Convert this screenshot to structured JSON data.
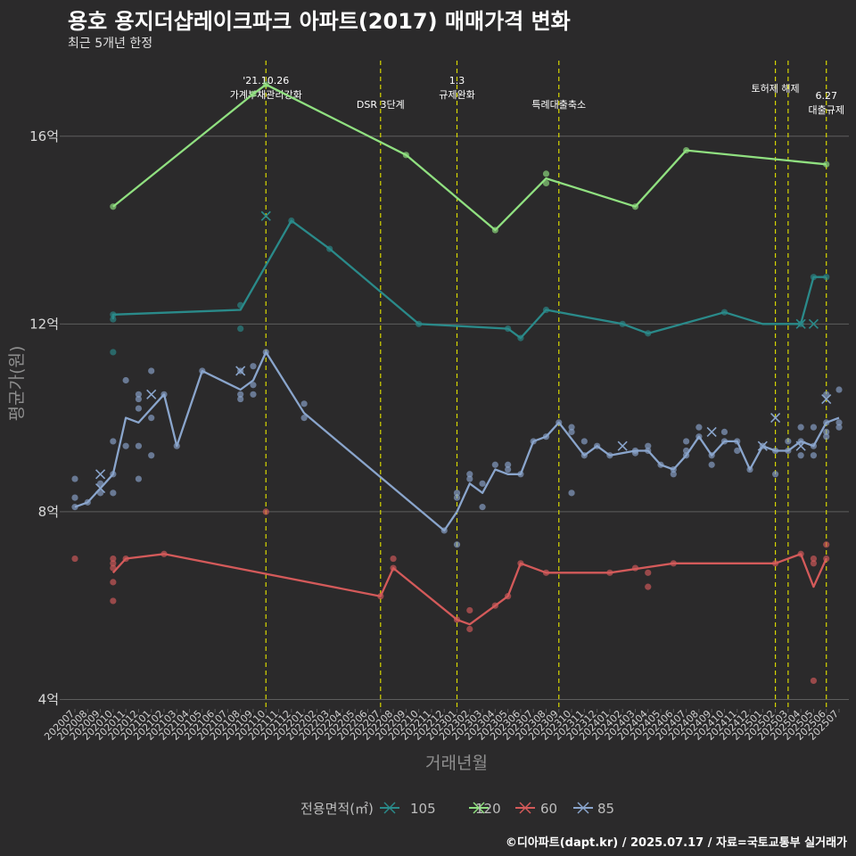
{
  "title": "용호 용지더샵레이크파크 아파트(2017) 매매가격 변화",
  "subtitle": "최근 5개년 한정",
  "caption": "©디아파트(dapt.kr) / 2025.07.17 / 자료=국토교통부 실거래가",
  "chart_data": {
    "type": "line",
    "xlabel": "거래년월",
    "ylabel": "평균가(원)",
    "ylim": [
      3.8,
      17.8
    ],
    "yticks": [
      {
        "v": 4,
        "label": "4억"
      },
      {
        "v": 8,
        "label": "8억"
      },
      {
        "v": 12,
        "label": "12억"
      },
      {
        "v": 16,
        "label": "16억"
      }
    ],
    "categories": [
      "202007",
      "202008",
      "202009",
      "202010",
      "202011",
      "202012",
      "202101",
      "202102",
      "202103",
      "202104",
      "202105",
      "202106",
      "202107",
      "202108",
      "202109",
      "202110",
      "202111",
      "202112",
      "202201",
      "202202",
      "202203",
      "202204",
      "202205",
      "202206",
      "202207",
      "202208",
      "202209",
      "202210",
      "202211",
      "202212",
      "202301",
      "202302",
      "202303",
      "202304",
      "202305",
      "202306",
      "202307",
      "202308",
      "202309",
      "202310",
      "202311",
      "202312",
      "202401",
      "202402",
      "202403",
      "202404",
      "202405",
      "202406",
      "202407",
      "202408",
      "202409",
      "202410",
      "202411",
      "202412",
      "202501",
      "202502",
      "202503",
      "202504",
      "202505",
      "202506",
      "202507"
    ],
    "legend_title": "전용면적(㎡)",
    "legend_position": "bottom",
    "events": [
      {
        "x": 15,
        "label": "'21.10.26\n가계부채관리강화"
      },
      {
        "x": 24,
        "label": "DSR 3단계"
      },
      {
        "x": 30,
        "label": "1.3\n규제완화"
      },
      {
        "x": 38,
        "label": "특례대출축소"
      },
      {
        "x": 55,
        "label": "토허제 해제"
      },
      {
        "x": 56,
        "label": ""
      },
      {
        "x": 59,
        "label": "6.27\n대출규제"
      }
    ],
    "series": [
      {
        "name": "105",
        "color": "#2a8a8a",
        "line": [
          [
            3,
            12.1
          ],
          [
            3,
            12.2
          ],
          [
            13,
            12.3
          ],
          [
            17,
            14.2
          ],
          [
            20,
            13.6
          ],
          [
            27,
            12.0
          ],
          [
            34,
            11.9
          ],
          [
            35,
            11.7
          ],
          [
            37,
            12.3
          ],
          [
            43,
            12.0
          ],
          [
            45,
            11.8
          ],
          [
            51,
            12.25
          ],
          [
            54,
            12.0
          ],
          [
            55,
            12.0
          ],
          [
            57,
            12.0
          ],
          [
            58,
            13.0
          ],
          [
            59,
            13.0
          ]
        ],
        "points": [
          [
            3,
            11.4
          ],
          [
            3,
            12.1
          ],
          [
            3,
            12.2
          ],
          [
            13,
            12.4
          ],
          [
            13,
            11.9
          ],
          [
            17,
            14.2
          ],
          [
            20,
            13.6
          ],
          [
            27,
            12.0
          ],
          [
            34,
            11.9
          ],
          [
            35,
            11.7
          ],
          [
            37,
            12.3
          ],
          [
            43,
            12.0
          ],
          [
            45,
            11.8
          ],
          [
            51,
            12.25
          ],
          [
            57,
            12.0
          ],
          [
            58,
            13.0
          ],
          [
            59,
            13.0
          ]
        ],
        "crosses": [
          [
            15,
            14.3
          ],
          [
            57,
            12.0
          ],
          [
            58,
            12.0
          ]
        ]
      },
      {
        "name": "120",
        "color": "#90e080",
        "line": [
          [
            3,
            14.5
          ],
          [
            14,
            16.9
          ],
          [
            15,
            17.1
          ],
          [
            26,
            15.6
          ],
          [
            33,
            14.0
          ],
          [
            37,
            15.1
          ],
          [
            44,
            14.5
          ],
          [
            48,
            15.7
          ],
          [
            59,
            15.4
          ]
        ],
        "points": [
          [
            3,
            14.5
          ],
          [
            14,
            16.9
          ],
          [
            15,
            17.1
          ],
          [
            26,
            15.6
          ],
          [
            33,
            14.0
          ],
          [
            37,
            15.0
          ],
          [
            37,
            15.2
          ],
          [
            44,
            14.5
          ],
          [
            48,
            15.7
          ],
          [
            59,
            15.4
          ]
        ],
        "crosses": []
      },
      {
        "name": "60",
        "color": "#d45a5a",
        "line": [
          [
            3,
            6.7
          ],
          [
            4,
            7.0
          ],
          [
            7,
            7.1
          ],
          [
            24,
            6.2
          ],
          [
            25,
            6.8
          ],
          [
            30,
            5.7
          ],
          [
            31,
            5.6
          ],
          [
            33,
            6.0
          ],
          [
            34,
            6.2
          ],
          [
            35,
            6.9
          ],
          [
            37,
            6.7
          ],
          [
            42,
            6.7
          ],
          [
            47,
            6.9
          ],
          [
            55,
            6.9
          ],
          [
            57,
            7.1
          ],
          [
            58,
            6.4
          ],
          [
            59,
            7.0
          ]
        ],
        "points": [
          [
            0,
            7.0
          ],
          [
            3,
            6.8
          ],
          [
            3,
            6.9
          ],
          [
            3,
            6.5
          ],
          [
            3,
            6.1
          ],
          [
            3,
            7.0
          ],
          [
            4,
            7.0
          ],
          [
            7,
            7.1
          ],
          [
            15,
            8.0
          ],
          [
            24,
            6.2
          ],
          [
            25,
            6.8
          ],
          [
            25,
            7.0
          ],
          [
            30,
            5.7
          ],
          [
            31,
            5.9
          ],
          [
            31,
            5.5
          ],
          [
            33,
            6.0
          ],
          [
            34,
            6.2
          ],
          [
            35,
            6.9
          ],
          [
            37,
            6.7
          ],
          [
            42,
            6.7
          ],
          [
            44,
            6.8
          ],
          [
            45,
            6.7
          ],
          [
            45,
            6.4
          ],
          [
            47,
            6.9
          ],
          [
            55,
            6.9
          ],
          [
            57,
            7.1
          ],
          [
            58,
            7.0
          ],
          [
            58,
            6.9
          ],
          [
            58,
            4.4
          ],
          [
            59,
            7.0
          ],
          [
            59,
            7.3
          ]
        ],
        "crosses": []
      },
      {
        "name": "85",
        "color": "#8aa5cc",
        "line": [
          [
            0,
            8.1
          ],
          [
            1,
            8.2
          ],
          [
            2,
            8.5
          ],
          [
            3,
            8.8
          ],
          [
            4,
            10.0
          ],
          [
            5,
            9.9
          ],
          [
            7,
            10.5
          ],
          [
            8,
            9.4
          ],
          [
            10,
            11.0
          ],
          [
            13,
            10.6
          ],
          [
            14,
            10.8
          ],
          [
            15,
            11.4
          ],
          [
            18,
            10.1
          ],
          [
            29,
            7.6
          ],
          [
            30,
            8.0
          ],
          [
            31,
            8.6
          ],
          [
            32,
            8.4
          ],
          [
            33,
            8.9
          ],
          [
            34,
            8.8
          ],
          [
            35,
            8.8
          ],
          [
            36,
            9.5
          ],
          [
            37,
            9.6
          ],
          [
            38,
            9.9
          ],
          [
            40,
            9.2
          ],
          [
            41,
            9.4
          ],
          [
            42,
            9.2
          ],
          [
            44,
            9.3
          ],
          [
            45,
            9.3
          ],
          [
            46,
            9.0
          ],
          [
            47,
            8.9
          ],
          [
            48,
            9.2
          ],
          [
            49,
            9.6
          ],
          [
            50,
            9.2
          ],
          [
            51,
            9.5
          ],
          [
            52,
            9.5
          ],
          [
            53,
            8.9
          ],
          [
            54,
            9.4
          ],
          [
            55,
            9.3
          ],
          [
            56,
            9.3
          ],
          [
            57,
            9.5
          ],
          [
            58,
            9.4
          ],
          [
            59,
            9.9
          ],
          [
            60,
            10.0
          ]
        ],
        "points": [
          [
            0,
            8.7
          ],
          [
            0,
            8.3
          ],
          [
            0,
            8.1
          ],
          [
            1,
            8.2
          ],
          [
            2,
            8.6
          ],
          [
            2,
            8.4
          ],
          [
            3,
            8.8
          ],
          [
            3,
            8.4
          ],
          [
            3,
            9.5
          ],
          [
            4,
            10.8
          ],
          [
            4,
            9.4
          ],
          [
            5,
            10.2
          ],
          [
            5,
            10.5
          ],
          [
            5,
            10.4
          ],
          [
            5,
            9.4
          ],
          [
            5,
            8.7
          ],
          [
            6,
            11.0
          ],
          [
            6,
            10.0
          ],
          [
            6,
            9.2
          ],
          [
            7,
            10.5
          ],
          [
            8,
            9.4
          ],
          [
            10,
            11.0
          ],
          [
            13,
            11.0
          ],
          [
            13,
            10.5
          ],
          [
            13,
            10.4
          ],
          [
            14,
            10.7
          ],
          [
            14,
            11.1
          ],
          [
            14,
            10.5
          ],
          [
            15,
            11.4
          ],
          [
            18,
            10.3
          ],
          [
            18,
            10.0
          ],
          [
            29,
            7.6
          ],
          [
            30,
            8.3
          ],
          [
            30,
            8.4
          ],
          [
            30,
            7.3
          ],
          [
            31,
            8.7
          ],
          [
            31,
            8.8
          ],
          [
            32,
            8.6
          ],
          [
            32,
            8.1
          ],
          [
            33,
            9.0
          ],
          [
            34,
            8.9
          ],
          [
            34,
            9.0
          ],
          [
            35,
            8.8
          ],
          [
            36,
            9.5
          ],
          [
            37,
            9.6
          ],
          [
            38,
            9.9
          ],
          [
            39,
            9.8
          ],
          [
            39,
            9.7
          ],
          [
            39,
            8.4
          ],
          [
            40,
            9.2
          ],
          [
            40,
            9.5
          ],
          [
            41,
            9.4
          ],
          [
            42,
            9.2
          ],
          [
            44,
            9.3
          ],
          [
            44,
            9.25
          ],
          [
            45,
            9.3
          ],
          [
            45,
            9.4
          ],
          [
            46,
            9.0
          ],
          [
            47,
            8.8
          ],
          [
            47,
            8.9
          ],
          [
            48,
            9.2
          ],
          [
            48,
            9.3
          ],
          [
            48,
            9.5
          ],
          [
            49,
            9.6
          ],
          [
            49,
            9.8
          ],
          [
            50,
            9.0
          ],
          [
            50,
            9.2
          ],
          [
            51,
            9.5
          ],
          [
            51,
            9.7
          ],
          [
            52,
            9.5
          ],
          [
            52,
            9.3
          ],
          [
            53,
            8.9
          ],
          [
            54,
            9.4
          ],
          [
            55,
            9.3
          ],
          [
            55,
            8.8
          ],
          [
            56,
            9.3
          ],
          [
            56,
            9.5
          ],
          [
            57,
            9.5
          ],
          [
            57,
            9.8
          ],
          [
            57,
            9.2
          ],
          [
            58,
            9.4
          ],
          [
            58,
            9.8
          ],
          [
            58,
            9.2
          ],
          [
            59,
            9.6
          ],
          [
            59,
            9.7
          ],
          [
            59,
            9.9
          ],
          [
            59,
            10.5
          ],
          [
            60,
            9.8
          ],
          [
            60,
            10.6
          ],
          [
            60,
            9.9
          ]
        ],
        "crosses": [
          [
            2,
            8.8
          ],
          [
            2,
            8.5
          ],
          [
            6,
            10.5
          ],
          [
            13,
            11.0
          ],
          [
            43,
            9.4
          ],
          [
            50,
            9.7
          ],
          [
            54,
            9.4
          ],
          [
            55,
            10.0
          ],
          [
            57,
            9.4
          ],
          [
            59,
            10.4
          ]
        ]
      }
    ]
  }
}
